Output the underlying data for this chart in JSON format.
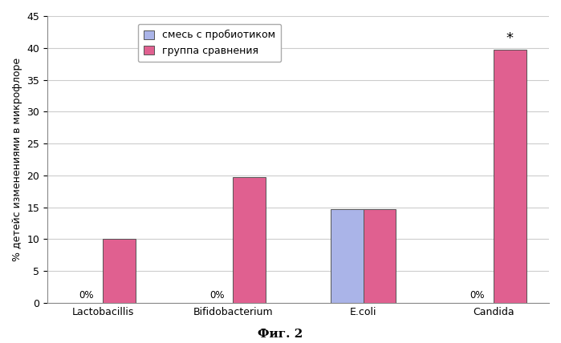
{
  "categories": [
    "Lactobacillis",
    "Bifidobacterium",
    "E.coli",
    "Candida"
  ],
  "series1_label": "смесь с пробиотиком",
  "series2_label": "группа сравнения",
  "series1_values": [
    0,
    0,
    14.7,
    0
  ],
  "series2_values": [
    10,
    19.7,
    14.7,
    39.7
  ],
  "series1_color": "#aab4e8",
  "series2_color": "#e06090",
  "bar_edge_color": "#555555",
  "ylim": [
    0,
    45
  ],
  "yticks": [
    0,
    5,
    10,
    15,
    20,
    25,
    30,
    35,
    40,
    45
  ],
  "ylabel": "% детейс изменениями в микрофлоре",
  "zero_labels": [
    true,
    true,
    false,
    true
  ],
  "candida_annotation": "*",
  "fig_caption": "Фиг. 2",
  "background_color": "#ffffff",
  "grid_color": "#cccccc",
  "bar_width": 0.25,
  "ylabel_fontsize": 9,
  "tick_fontsize": 9,
  "legend_fontsize": 9
}
